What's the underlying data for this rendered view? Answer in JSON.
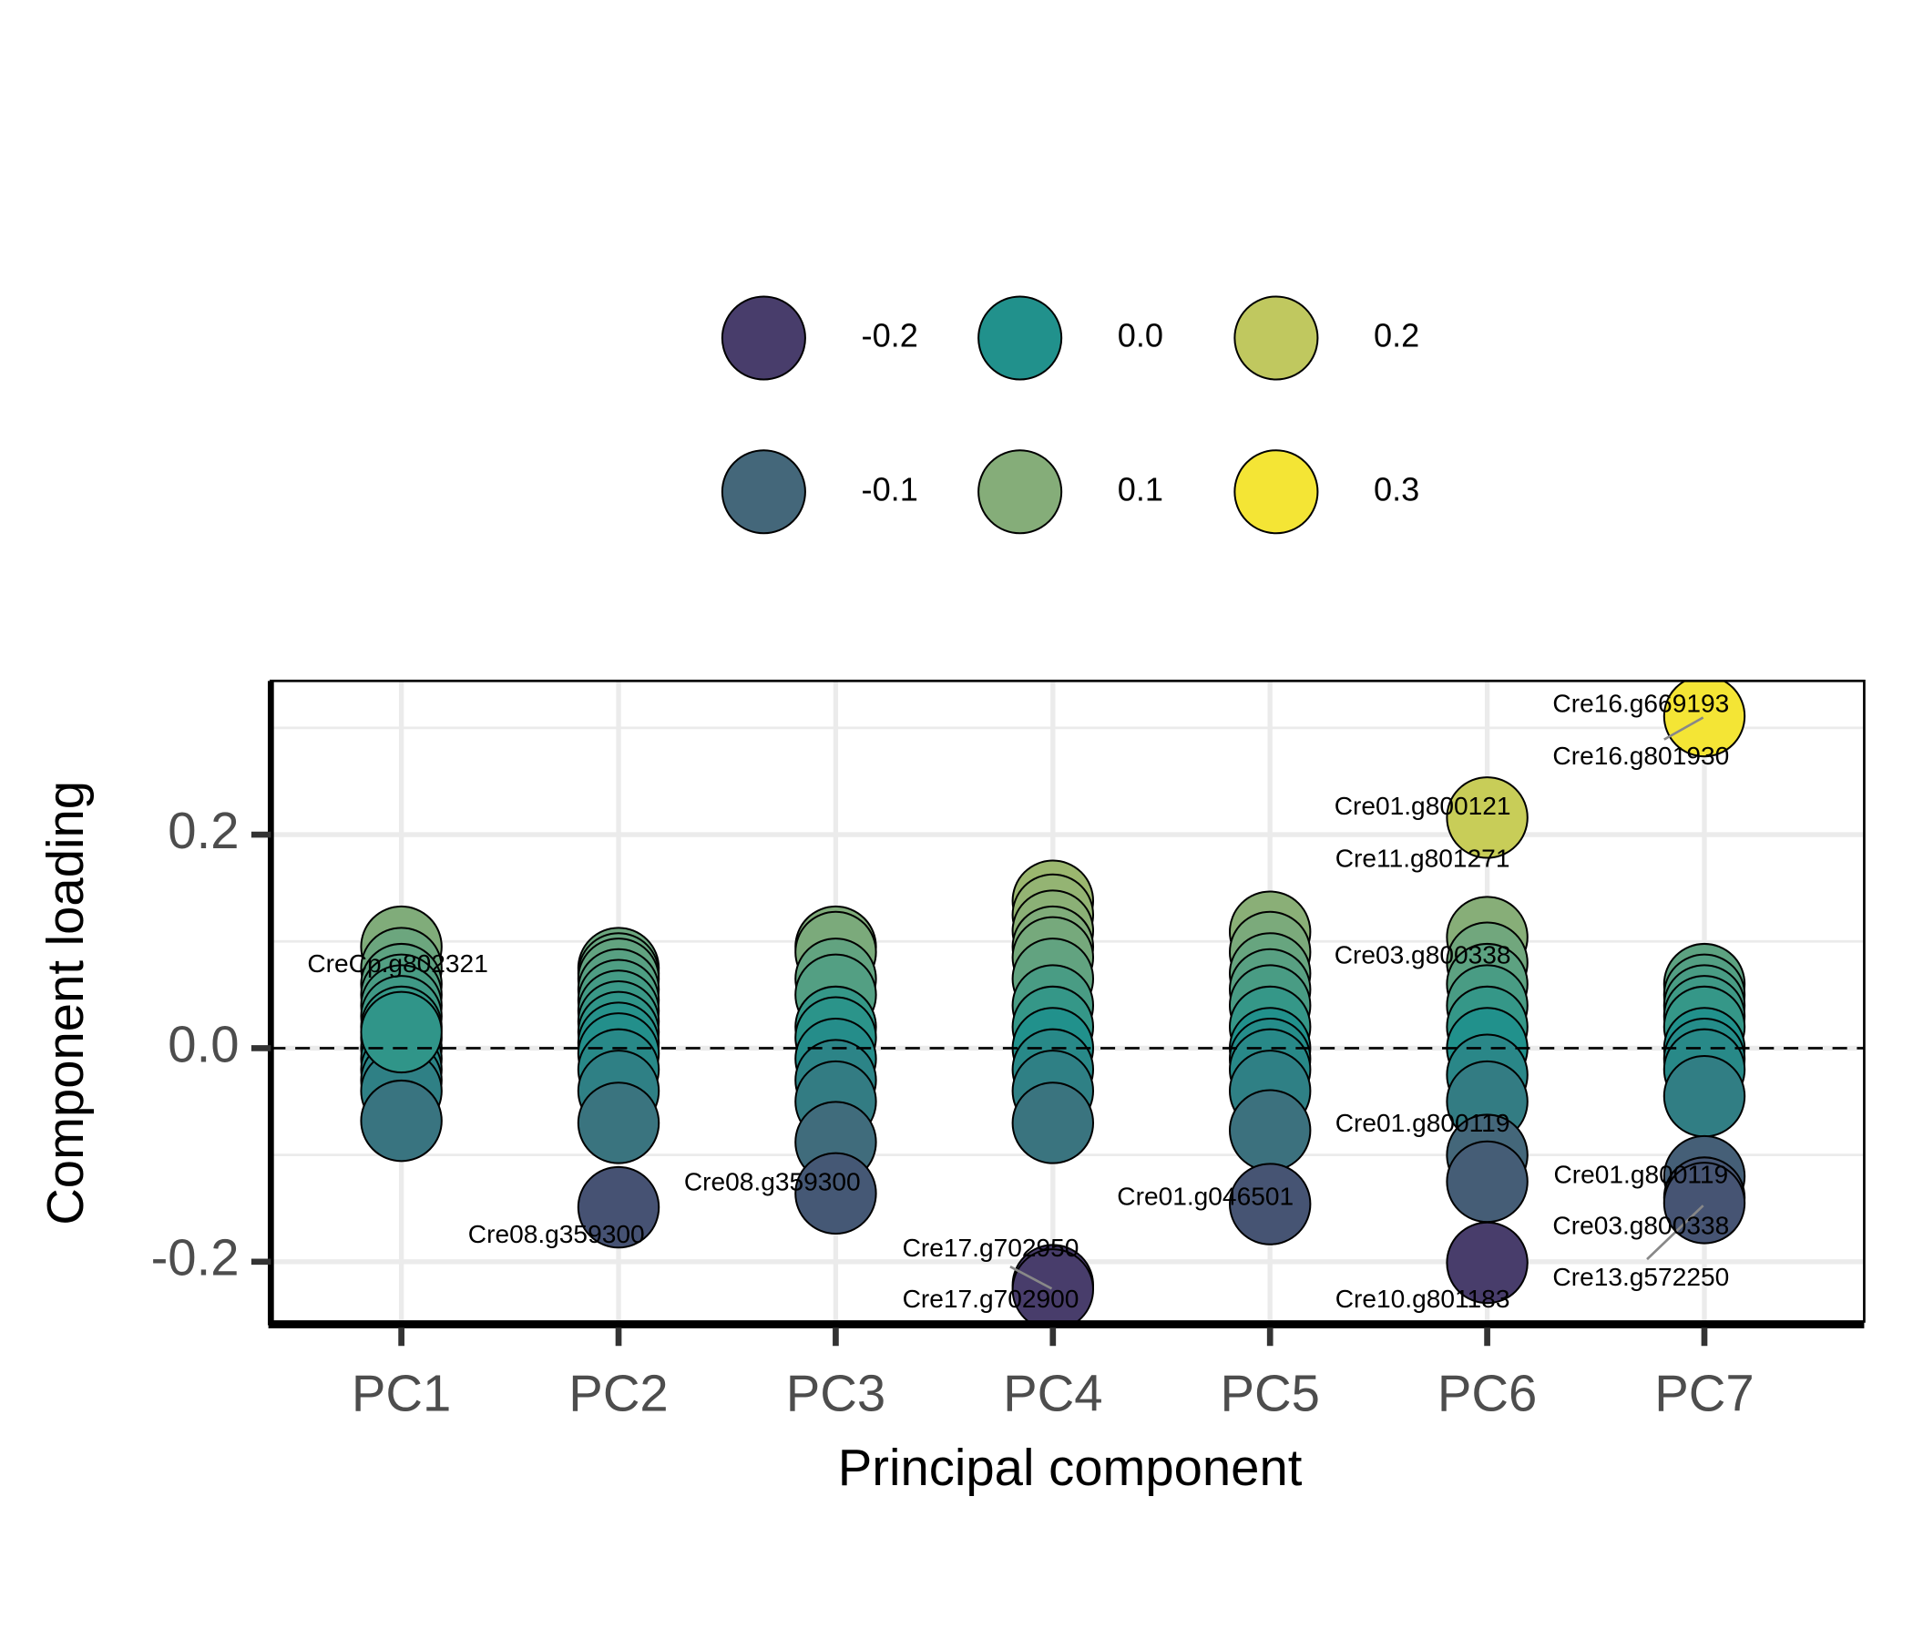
{
  "chart_data": {
    "type": "scatter",
    "x_label": "Principal component",
    "y_label": "Component loading",
    "categories": [
      "PC1",
      "PC2",
      "PC3",
      "PC4",
      "PC5",
      "PC6",
      "PC7"
    ],
    "values": [
      [
        0.095,
        0.075,
        0.06,
        0.05,
        0.04,
        0.03,
        0.02,
        0.01,
        0.0,
        -0.01,
        -0.02,
        -0.03,
        -0.04,
        -0.068,
        0.015
      ],
      [
        0.075,
        0.07,
        0.065,
        0.055,
        0.045,
        0.035,
        0.025,
        0.015,
        0.005,
        -0.005,
        -0.02,
        -0.04,
        -0.07,
        -0.149
      ],
      [
        0.095,
        0.09,
        0.065,
        0.05,
        0.02,
        0.01,
        -0.01,
        -0.03,
        -0.05,
        -0.088,
        -0.136
      ],
      [
        0.138,
        0.125,
        0.11,
        0.095,
        0.085,
        0.065,
        0.04,
        0.02,
        0.0,
        -0.02,
        -0.04,
        -0.07,
        -0.222,
        -0.226
      ],
      [
        0.109,
        0.09,
        0.07,
        0.055,
        0.04,
        0.02,
        0.0,
        -0.01,
        -0.02,
        -0.04,
        -0.077,
        -0.146
      ],
      [
        0.216,
        0.104,
        0.08,
        0.06,
        0.04,
        0.02,
        0.0,
        -0.025,
        -0.05,
        -0.1,
        -0.125,
        -0.201
      ],
      [
        0.311,
        0.06,
        0.05,
        0.04,
        0.03,
        0.02,
        0.0,
        -0.01,
        -0.02,
        -0.045,
        -0.12,
        -0.14,
        -0.145
      ]
    ],
    "ylim": [
      -0.256,
      0.344
    ],
    "yticks": [
      -0.2,
      {
        "value": 0,
        "label": "0.0"
      },
      0.2
    ],
    "yminor": [
      -0.1,
      0.1,
      0.3
    ],
    "grid": true,
    "reference_line": 0,
    "legend": {
      "position": "top",
      "items": [
        {
          "value": -0.2,
          "label": "-0.2",
          "color": "#483d6b"
        },
        {
          "value": -0.1,
          "label": "-0.1",
          "color": "#44677a"
        },
        {
          "value": 0,
          "label": "0.0",
          "color": "#21918c"
        },
        {
          "value": 0.1,
          "label": "0.1",
          "color": "#85ad79"
        },
        {
          "value": 0.2,
          "label": "0.2",
          "color": "#c0c85f"
        },
        {
          "value": 0.3,
          "label": "0.3",
          "color": "#f4e535"
        }
      ]
    },
    "annotations": [
      "CreCp.g802321",
      "Cre08.g359300",
      "Cre08.g359300",
      "Cre17.g702950",
      "Cre17.g702900",
      "Cre01.g046501",
      "Cre01.g800121",
      "Cre11.g801271",
      "Cre03.g800338",
      "Cre01.g800119",
      "Cre10.g801183",
      "Cre16.g669193",
      "Cre16.g801930",
      "Cre01.g800119",
      "Cre03.g800338",
      "Cre13.g572250"
    ]
  }
}
